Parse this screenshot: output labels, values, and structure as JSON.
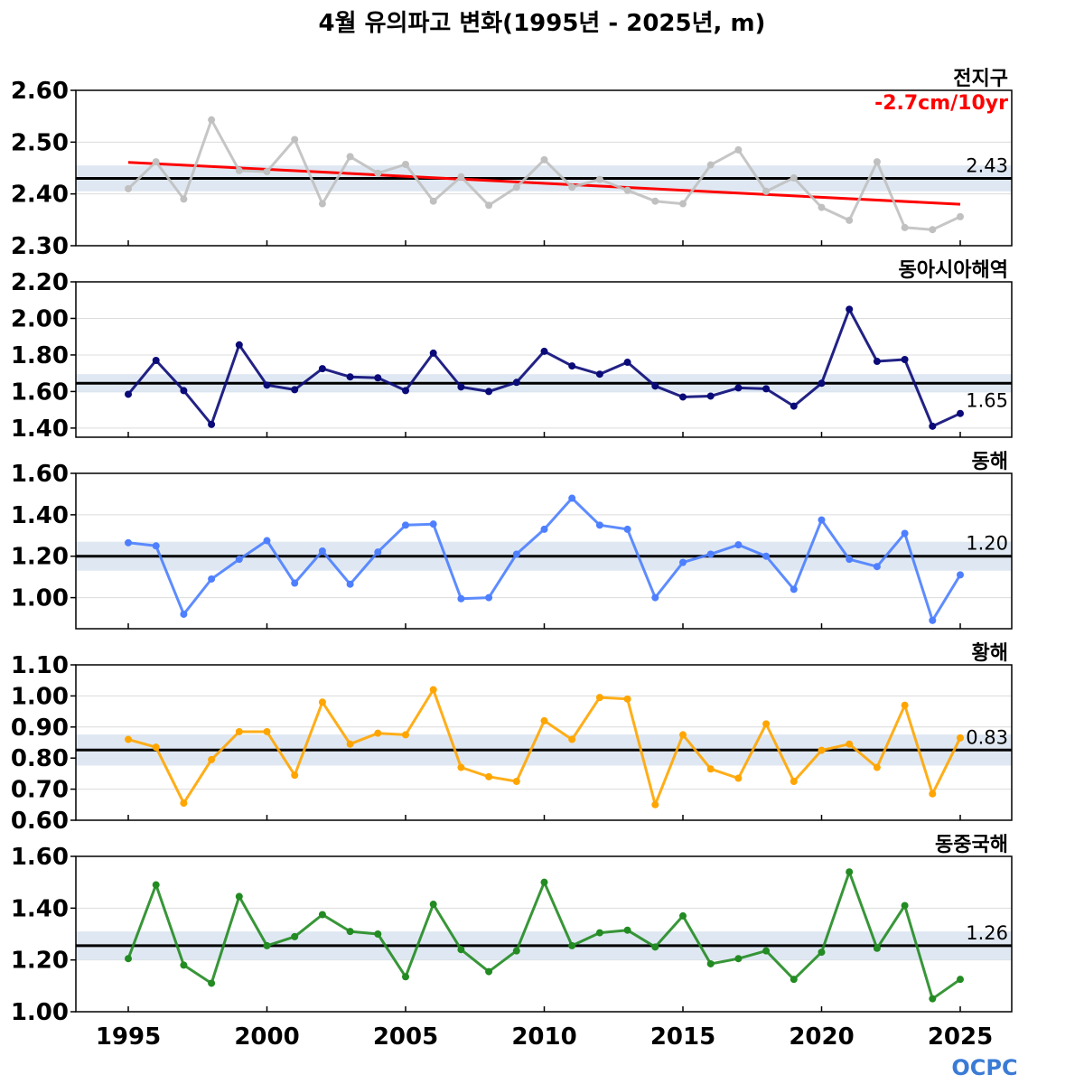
{
  "title": "4월 유의파고 변화(1995년 - 2025년, m)",
  "logo_text": "OCPC",
  "x_ticks": [
    1995,
    2000,
    2005,
    2010,
    2015,
    2020,
    2025
  ],
  "chart_data": {
    "type": "line",
    "x": [
      1995,
      1996,
      1997,
      1998,
      1999,
      2000,
      2001,
      2002,
      2003,
      2004,
      2005,
      2006,
      2007,
      2008,
      2009,
      2010,
      2011,
      2012,
      2013,
      2014,
      2015,
      2016,
      2017,
      2018,
      2019,
      2020,
      2021,
      2022,
      2023,
      2024,
      2025
    ],
    "panels": [
      {
        "region": "전지구",
        "trend_label": "-2.7cm/10yr",
        "mean_label": "2.43",
        "mean": 2.43,
        "std": 0.025,
        "ylim": [
          2.3,
          2.6
        ],
        "yticks": [
          "2.30",
          "2.40",
          "2.50",
          "2.60"
        ],
        "color": "#c0c0c0",
        "trend_color": "#ff0000",
        "trend_line": [
          2.461,
          2.38
        ],
        "values": [
          2.41,
          2.462,
          2.39,
          2.543,
          2.445,
          2.443,
          2.505,
          2.381,
          2.472,
          2.44,
          2.457,
          2.386,
          2.433,
          2.378,
          2.413,
          2.466,
          2.413,
          2.428,
          2.407,
          2.386,
          2.381,
          2.456,
          2.485,
          2.405,
          2.431,
          2.374,
          2.349,
          2.462,
          2.335,
          2.331,
          2.356
        ]
      },
      {
        "region": "동아시아해역",
        "mean_label": "1.65",
        "mean": 1.645,
        "std": 0.05,
        "ylim": [
          1.35,
          2.2
        ],
        "yticks": [
          "1.40",
          "1.60",
          "1.80",
          "2.00",
          "2.20"
        ],
        "color": "#0a0a78",
        "values": [
          1.585,
          1.77,
          1.605,
          1.42,
          1.855,
          1.635,
          1.61,
          1.725,
          1.68,
          1.675,
          1.605,
          1.81,
          1.625,
          1.6,
          1.65,
          1.82,
          1.74,
          1.695,
          1.76,
          1.63,
          1.57,
          1.575,
          1.62,
          1.615,
          1.52,
          1.645,
          2.05,
          1.765,
          1.775,
          1.41,
          1.48
        ]
      },
      {
        "region": "동해",
        "mean_label": "1.20",
        "mean": 1.2,
        "std": 0.07,
        "ylim": [
          0.85,
          1.6
        ],
        "yticks": [
          "1.00",
          "1.20",
          "1.40",
          "1.60"
        ],
        "color": "#4d7fff",
        "values": [
          1.265,
          1.25,
          0.92,
          1.09,
          1.185,
          1.275,
          1.07,
          1.225,
          1.065,
          1.22,
          1.35,
          1.355,
          0.995,
          1.0,
          1.21,
          1.33,
          1.48,
          1.35,
          1.33,
          1.0,
          1.17,
          1.21,
          1.255,
          1.2,
          1.04,
          1.375,
          1.185,
          1.15,
          1.31,
          0.89,
          1.11
        ]
      },
      {
        "region": "황해",
        "mean_label": "0.83",
        "mean": 0.826,
        "std": 0.05,
        "ylim": [
          0.6,
          1.1
        ],
        "yticks": [
          "0.60",
          "0.70",
          "0.80",
          "0.90",
          "1.00",
          "1.10"
        ],
        "color": "#ffa500",
        "values": [
          0.86,
          0.835,
          0.655,
          0.795,
          0.885,
          0.885,
          0.745,
          0.98,
          0.845,
          0.88,
          0.875,
          1.02,
          0.77,
          0.74,
          0.725,
          0.92,
          0.86,
          0.995,
          0.99,
          0.65,
          0.875,
          0.765,
          0.735,
          0.91,
          0.725,
          0.825,
          0.845,
          0.77,
          0.97,
          0.685,
          0.865
        ]
      },
      {
        "region": "동중국해",
        "mean_label": "1.26",
        "mean": 1.255,
        "std": 0.055,
        "ylim": [
          1.0,
          1.6
        ],
        "yticks": [
          "1.00",
          "1.20",
          "1.40",
          "1.60"
        ],
        "color": "#228b22",
        "values": [
          1.205,
          1.49,
          1.18,
          1.11,
          1.445,
          1.255,
          1.29,
          1.375,
          1.31,
          1.3,
          1.135,
          1.415,
          1.24,
          1.155,
          1.235,
          1.5,
          1.255,
          1.305,
          1.315,
          1.25,
          1.37,
          1.185,
          1.205,
          1.235,
          1.125,
          1.23,
          1.54,
          1.245,
          1.41,
          1.05,
          1.125
        ]
      }
    ]
  }
}
